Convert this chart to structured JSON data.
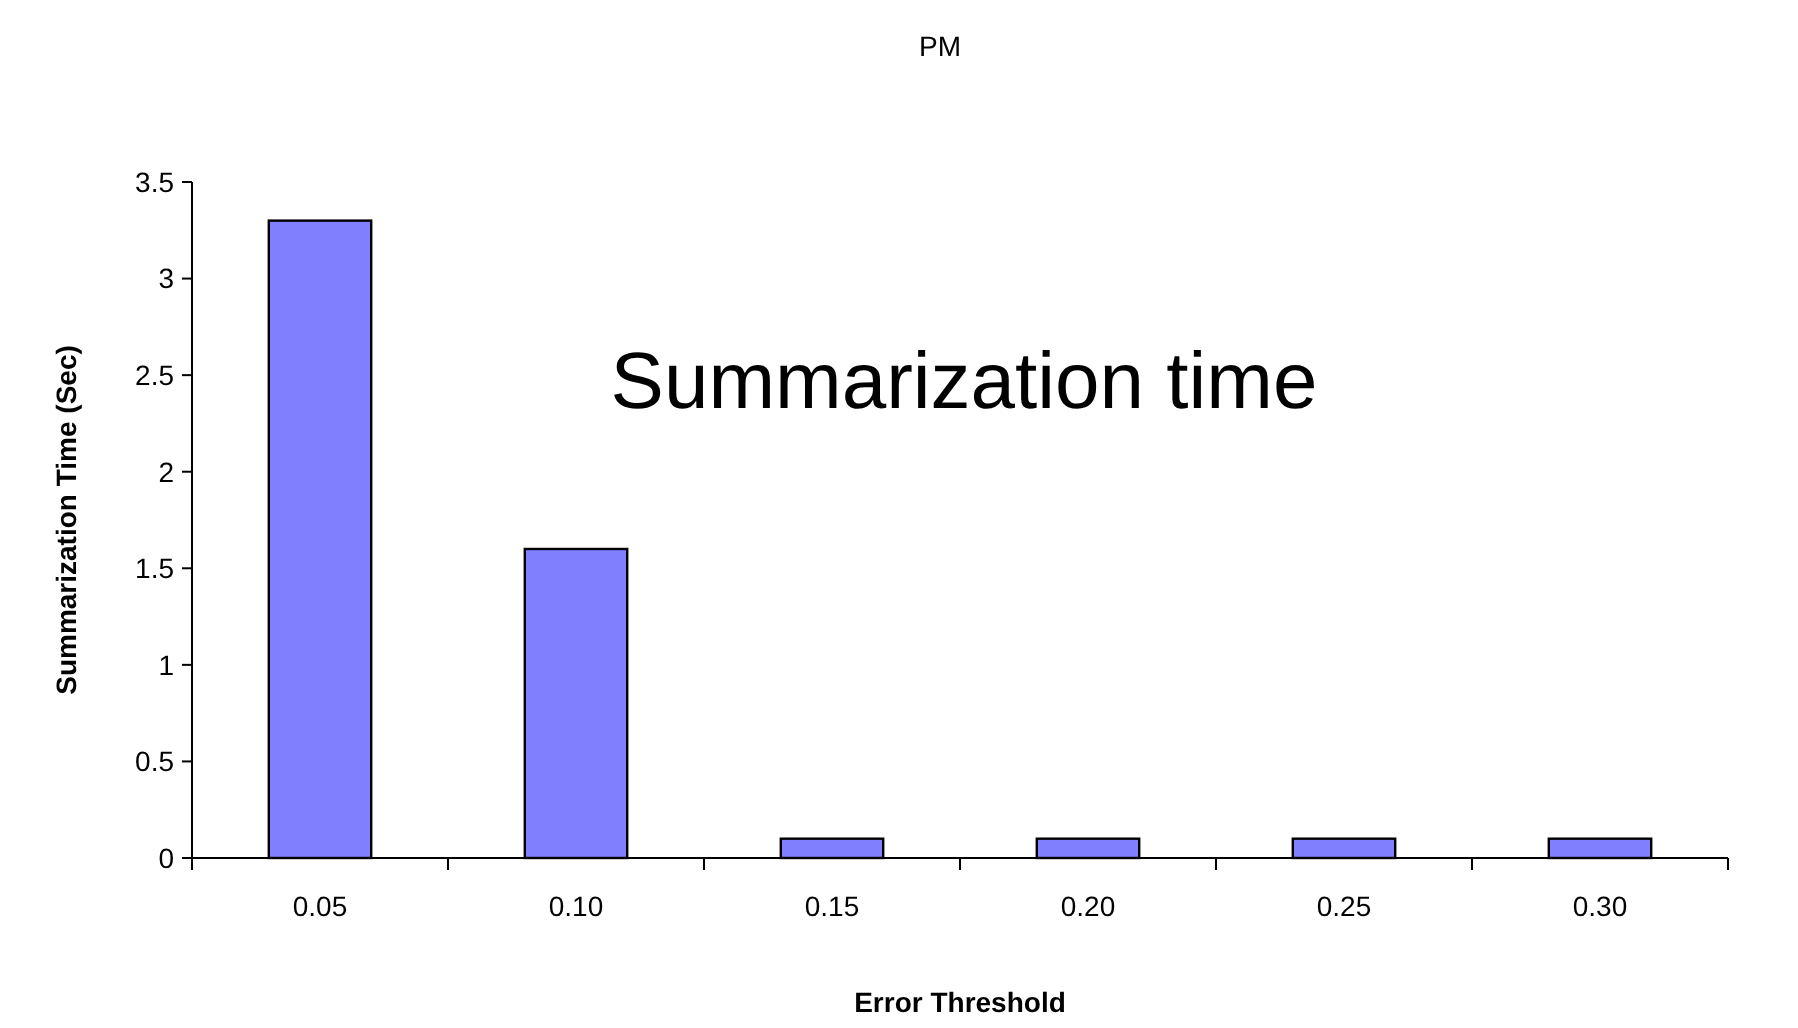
{
  "chart_data": {
    "type": "bar",
    "title": "PM",
    "xlabel": "Error Threshold",
    "ylabel": "Summarization Time (Sec)",
    "annotations": [
      "Summarization time"
    ],
    "categories": [
      "0.05",
      "0.10",
      "0.15",
      "0.20",
      "0.25",
      "0.30"
    ],
    "values": [
      3.3,
      1.6,
      0.1,
      0.1,
      0.1,
      0.1
    ],
    "color": "#8080ff",
    "ylim": [
      0,
      3.5
    ],
    "yticks": [
      0,
      0.5,
      1,
      1.5,
      2,
      2.5,
      3,
      3.5
    ],
    "grid": false
  }
}
